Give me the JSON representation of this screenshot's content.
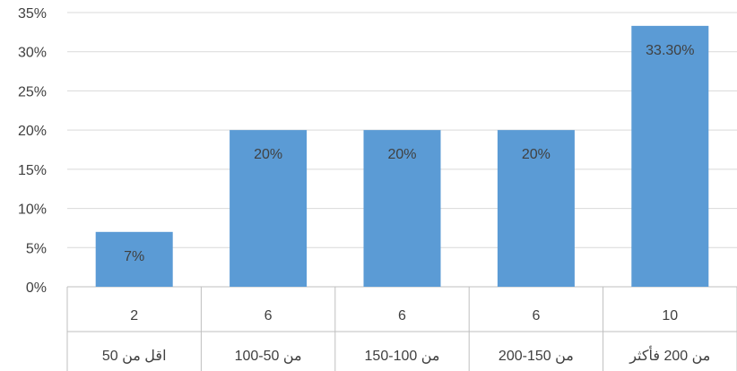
{
  "chart_data": {
    "type": "bar",
    "categories": [
      {
        "count": "2",
        "range": "اقل من 50"
      },
      {
        "count": "6",
        "range": "من 50-100"
      },
      {
        "count": "6",
        "range": "من 100-150"
      },
      {
        "count": "6",
        "range": "من 150-200"
      },
      {
        "count": "10",
        "range": "من 200 فأكثر"
      }
    ],
    "values": [
      7,
      20,
      20,
      20,
      33.3
    ],
    "data_labels": [
      "7%",
      "20%",
      "20%",
      "20%",
      "33.30%"
    ],
    "y_ticks": [
      0,
      5,
      10,
      15,
      20,
      25,
      30,
      35
    ],
    "y_tick_labels": [
      "0%",
      "5%",
      "10%",
      "15%",
      "20%",
      "25%",
      "30%",
      "35%"
    ],
    "ylim": [
      0,
      35
    ],
    "grid": true,
    "colors": {
      "bar": "#5b9bd5",
      "grid": "#d9d9d9",
      "text": "#404040",
      "table_border": "#bfbfbf"
    }
  }
}
